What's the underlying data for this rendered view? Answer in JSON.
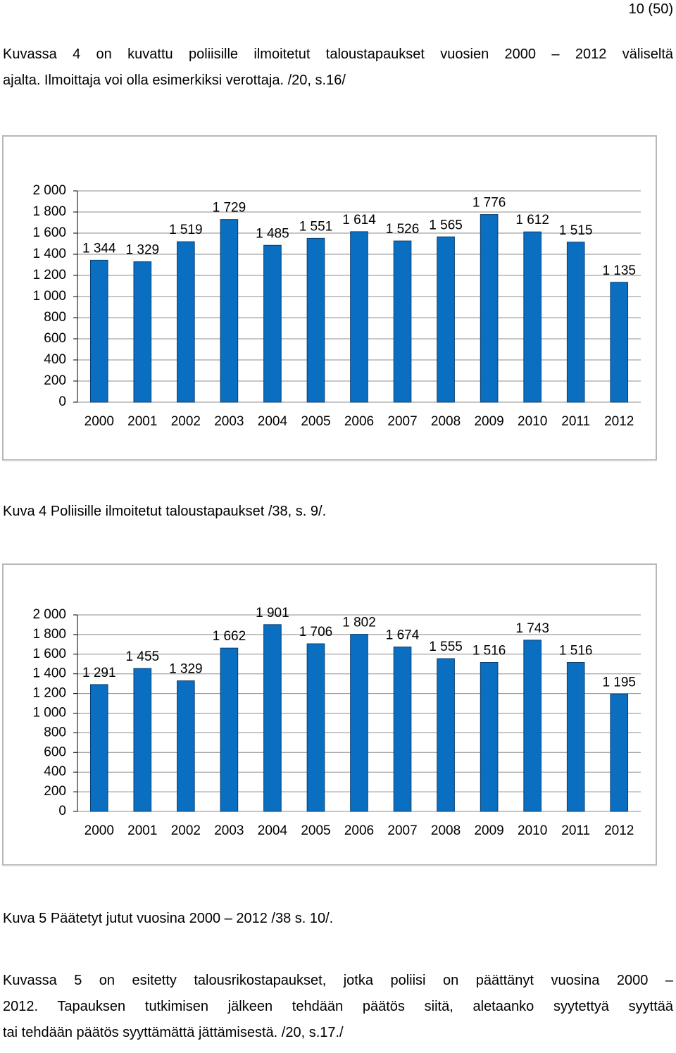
{
  "page_number": "10 (50)",
  "paragraph_1": [
    "Kuvassa 4 on kuvattu poliisille ilmoitetut taloustapaukset vuosien 2000 – 2012 väliseltä",
    "ajalta. Ilmoittaja voi olla esimerkiksi verottaja. /20, s.16/"
  ],
  "caption_1": "Kuva 4 Poliisille ilmoitetut taloustapaukset /38, s. 9/.",
  "caption_2": "Kuva 5 Päätetyt jutut vuosina 2000 – 2012 /38 s. 10/.",
  "paragraph_2": [
    "Kuvassa 5 on esitetty talousrikostapaukset, jotka poliisi on päättänyt vuosina 2000 –",
    "2012. Tapauksen tutkimisen jälkeen tehdään päätös siitä, aletaanko syytettyä syyttää",
    "tai tehdään päätös syyttämättä jättämisestä. /20, s.17./"
  ],
  "chart_data": [
    {
      "type": "bar",
      "color": "#0b6fc1",
      "categories": [
        "2000",
        "2001",
        "2002",
        "2003",
        "2004",
        "2005",
        "2006",
        "2007",
        "2008",
        "2009",
        "2010",
        "2011",
        "2012"
      ],
      "values": [
        1344,
        1329,
        1519,
        1729,
        1485,
        1551,
        1614,
        1526,
        1565,
        1776,
        1612,
        1515,
        1135
      ],
      "value_labels": [
        "1 344",
        "1 329",
        "1 519",
        "1 729",
        "1 485",
        "1 551",
        "1 614",
        "1 526",
        "1 565",
        "1 776",
        "1 612",
        "1 515",
        "1 135"
      ],
      "ylim": [
        0,
        2000
      ],
      "yticks": [
        0,
        {
          "value": 200,
          "label": "200"
        },
        {
          "value": 400,
          "label": "400"
        },
        {
          "value": 600,
          "label": "600"
        },
        {
          "value": 800,
          "label": "800"
        },
        {
          "value": 1000,
          "label": "1 000"
        },
        {
          "value": 1200,
          "label": "1 200"
        },
        {
          "value": 1400,
          "label": "1 400"
        },
        {
          "value": 1600,
          "label": "1 600"
        },
        {
          "value": 1800,
          "label": "1 800"
        },
        {
          "value": 2000,
          "label": "2 000"
        }
      ],
      "grid": true
    },
    {
      "type": "bar",
      "color": "#0b6fc1",
      "categories": [
        "2000",
        "2001",
        "2002",
        "2003",
        "2004",
        "2005",
        "2006",
        "2007",
        "2008",
        "2009",
        "2010",
        "2011",
        "2012"
      ],
      "values": [
        1291,
        1455,
        1329,
        1662,
        1901,
        1706,
        1802,
        1674,
        1555,
        1516,
        1743,
        1516,
        1195
      ],
      "value_labels": [
        "1 291",
        "1 455",
        "1 329",
        "1 662",
        "1 901",
        "1 706",
        "1 802",
        "1 674",
        "1 555",
        "1 516",
        "1 743",
        "1 516",
        "1 195"
      ],
      "ylim": [
        0,
        2000
      ],
      "yticks": [
        0,
        {
          "value": 200,
          "label": "200"
        },
        {
          "value": 400,
          "label": "400"
        },
        {
          "value": 600,
          "label": "600"
        },
        {
          "value": 800,
          "label": "800"
        },
        {
          "value": 1000,
          "label": "1 000"
        },
        {
          "value": 1200,
          "label": "1 200"
        },
        {
          "value": 1400,
          "label": "1 400"
        },
        {
          "value": 1600,
          "label": "1 600"
        },
        {
          "value": 1800,
          "label": "1 800"
        },
        {
          "value": 2000,
          "label": "2 000"
        }
      ],
      "grid": true
    }
  ]
}
